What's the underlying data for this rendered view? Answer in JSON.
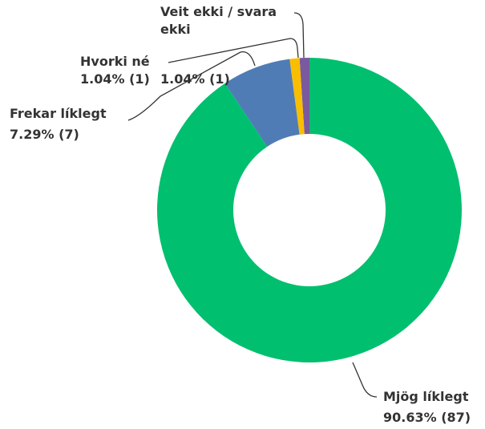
{
  "chart_data": {
    "type": "donut",
    "categories": [
      "Mjög líklegt",
      "Frekar líklegt",
      "Hvorki né",
      "Veit ekki / svara ekki"
    ],
    "values": [
      90.63,
      7.29,
      1.04,
      1.04
    ],
    "value_labels": [
      "90.63% (87)",
      "7.29% (7)",
      "1.04% (1)",
      "1.04% (1)"
    ],
    "colors": [
      "#00bf6f",
      "#507cb6",
      "#f9be00",
      "#7a5a9e"
    ]
  }
}
